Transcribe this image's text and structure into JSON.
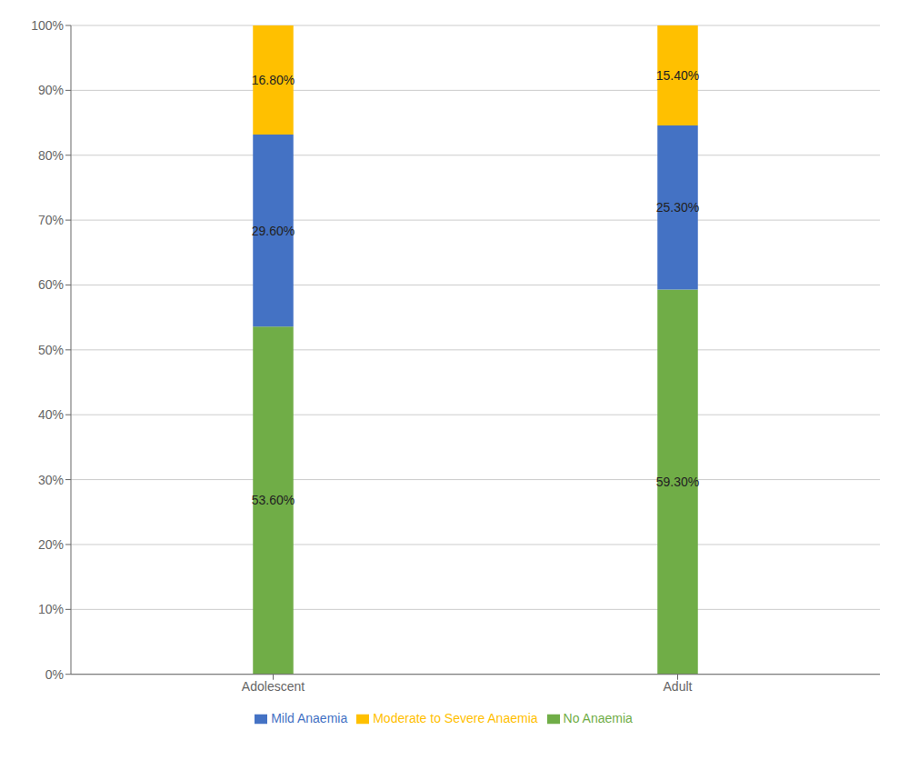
{
  "chart_data": {
    "type": "bar",
    "stacked": true,
    "categories": [
      "Adolescent",
      "Adult"
    ],
    "series": [
      {
        "name": "No Anaemia",
        "color": "#70AD47",
        "values": [
          53.6,
          59.3
        ],
        "value_labels": [
          "53.60%",
          "59.30%"
        ]
      },
      {
        "name": "Mild Anaemia",
        "color": "#4472C4",
        "values": [
          29.6,
          25.3
        ],
        "value_labels": [
          "29.60%",
          "25.30%"
        ]
      },
      {
        "name": "Moderate to Severe  Anaemia",
        "color": "#FFC000",
        "values": [
          16.8,
          15.4
        ],
        "value_labels": [
          "16.80%",
          "15.40%"
        ]
      }
    ],
    "ylim": [
      0,
      100
    ],
    "yticks": [
      {
        "value": 0,
        "label": "0%"
      },
      {
        "value": 10,
        "label": "10%"
      },
      {
        "value": 20,
        "label": "20%"
      },
      {
        "value": 30,
        "label": "30%"
      },
      {
        "value": 40,
        "label": "40%"
      },
      {
        "value": 50,
        "label": "50%"
      },
      {
        "value": 60,
        "label": "60%"
      },
      {
        "value": 70,
        "label": "70%"
      },
      {
        "value": 80,
        "label": "80%"
      },
      {
        "value": 90,
        "label": "90%"
      },
      {
        "value": 100,
        "label": "100%"
      }
    ],
    "grid": true,
    "legend": "bottom",
    "data_labels": true
  }
}
